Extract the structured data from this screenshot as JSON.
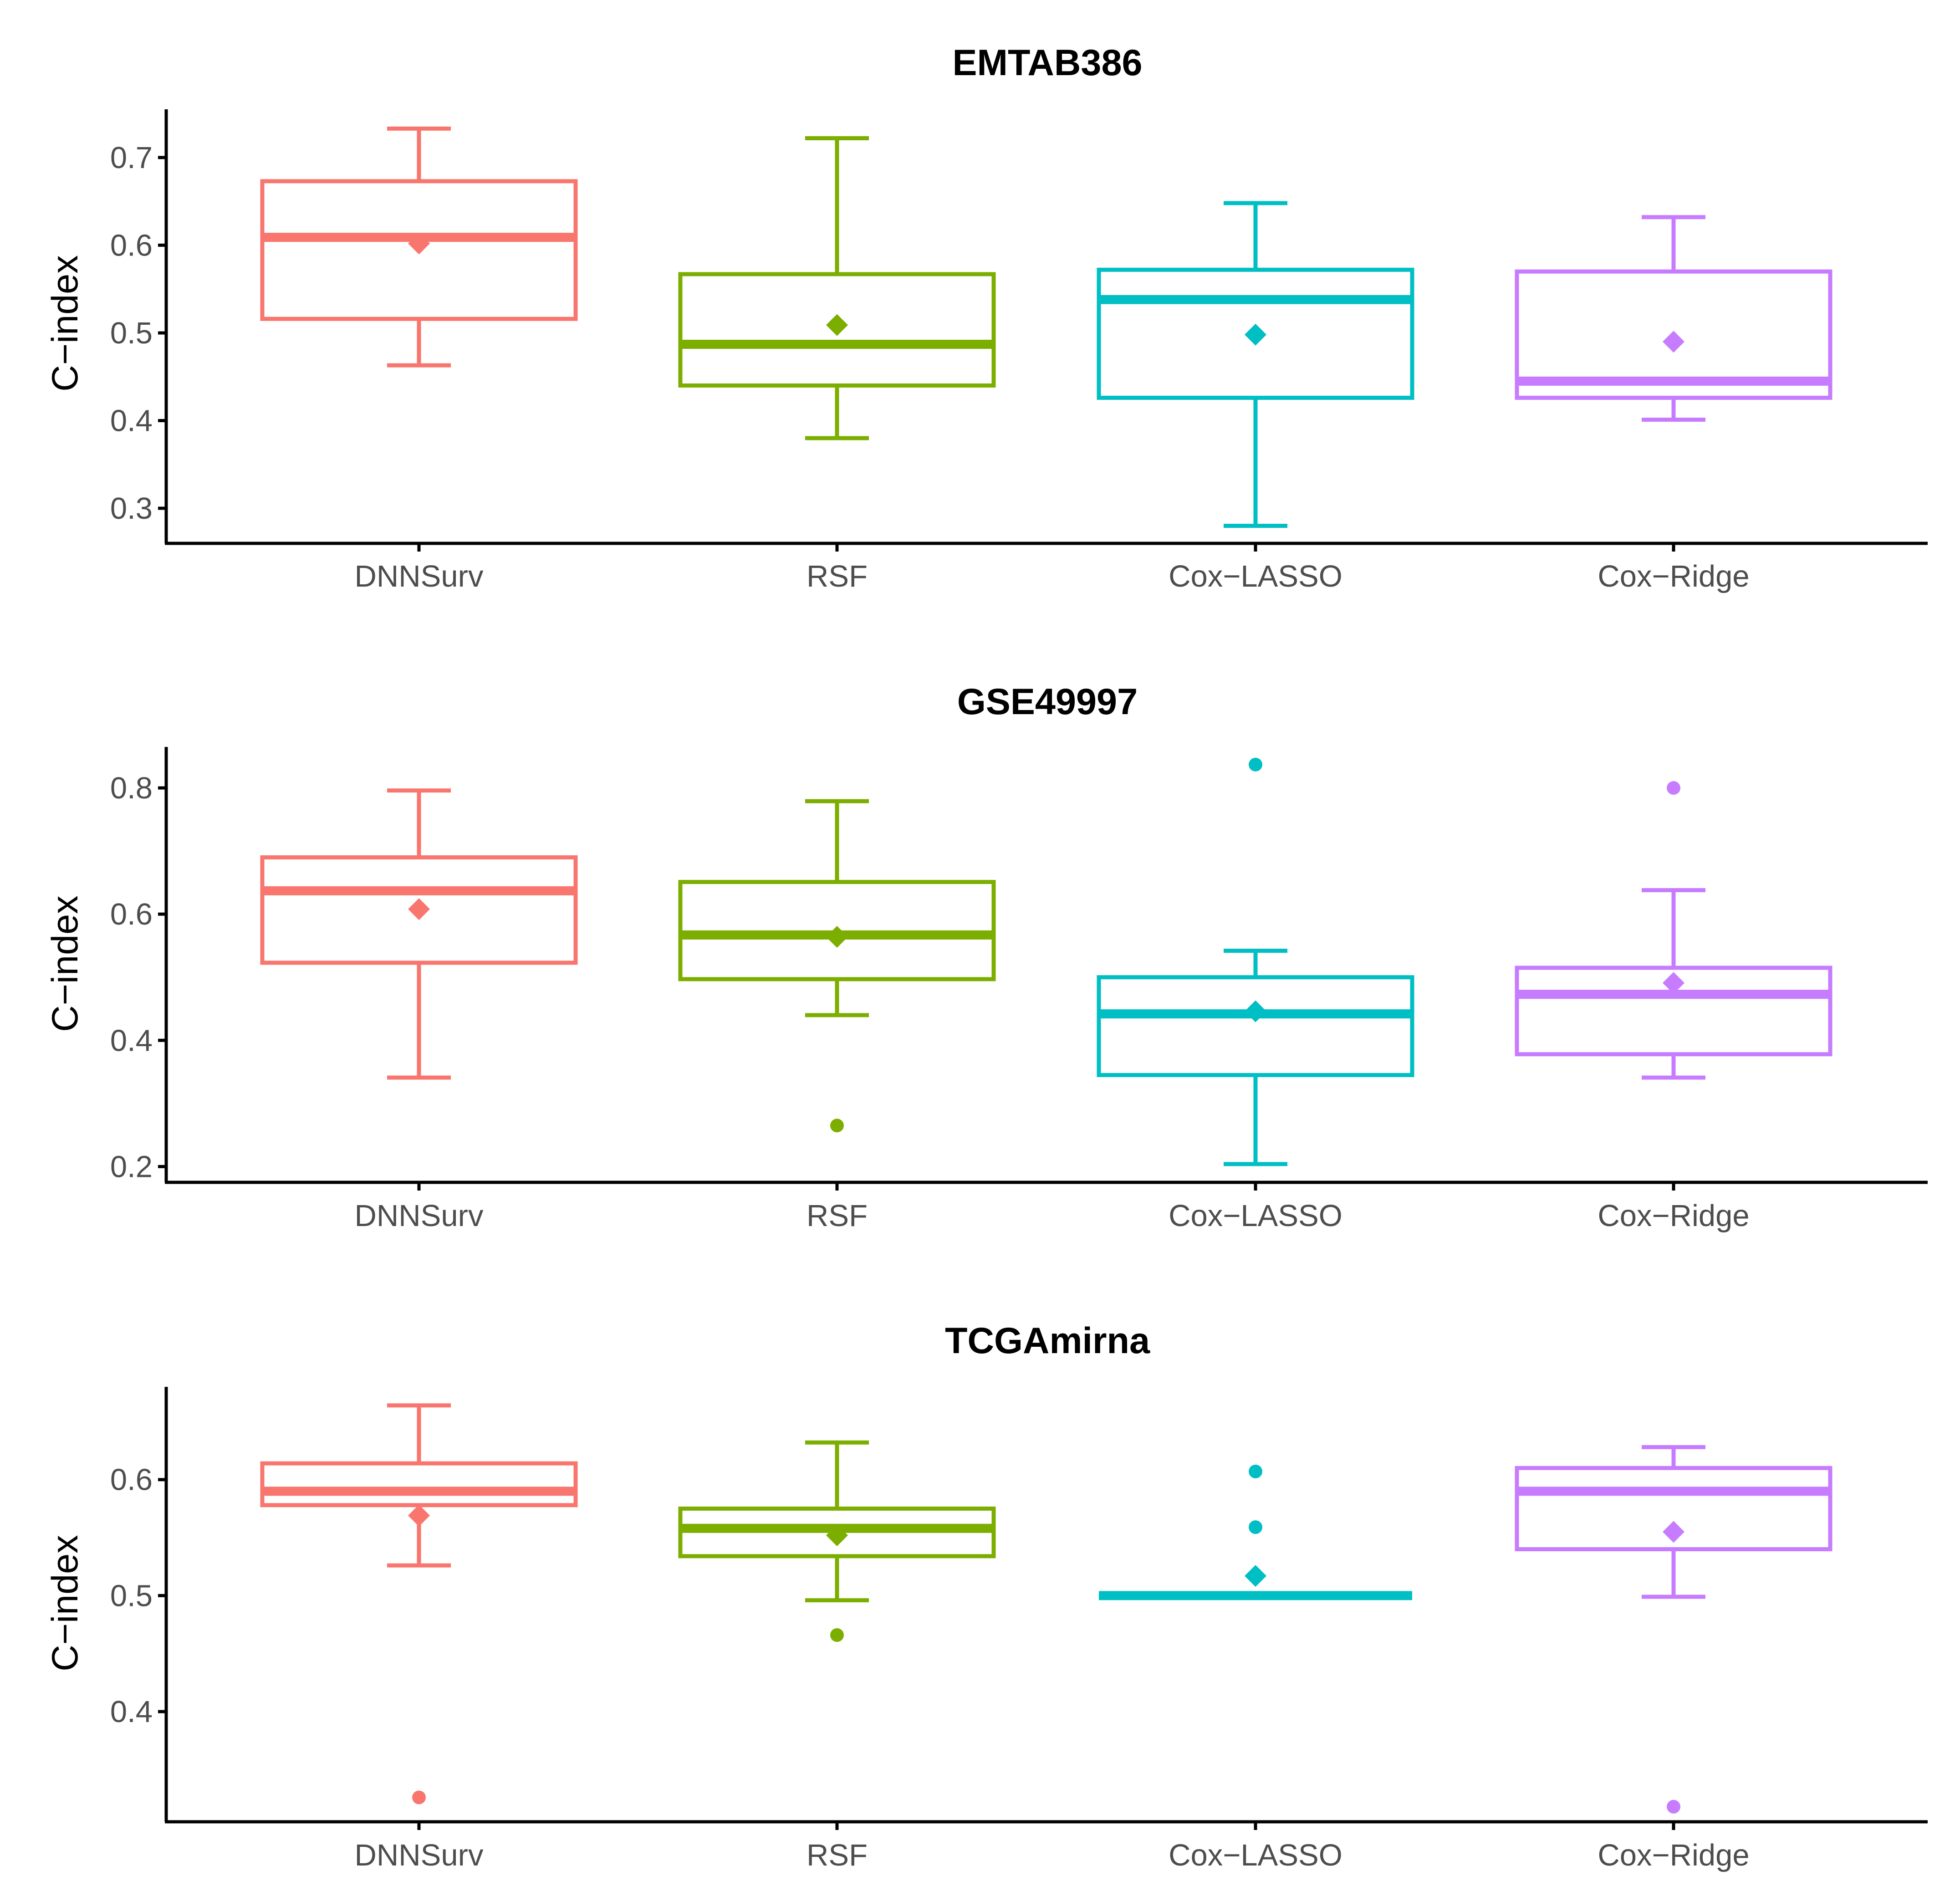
{
  "colors": {
    "DNNSurv": "#F8766D",
    "RSF": "#7CAE00",
    "Cox-LASSO": "#00BFC4",
    "Cox-Ridge": "#C77CFF",
    "axis": "#000000",
    "tick_label": "#4d4d4d"
  },
  "chart_data": [
    {
      "type": "boxplot",
      "title": "EMTAB386",
      "xlabel": "",
      "ylabel": "C−index",
      "categories": [
        "DNNSurv",
        "RSF",
        "Cox−LASSO",
        "Cox−Ridge"
      ],
      "yticks": [
        0.3,
        0.4,
        0.5,
        0.6,
        0.7
      ],
      "ylim": [
        0.26,
        0.755
      ],
      "boxes": [
        {
          "name": "DNNSurv",
          "color": "#F8766D",
          "whisker_low": 0.463,
          "q1": 0.516,
          "median": 0.609,
          "q3": 0.673,
          "whisker_high": 0.733,
          "mean": 0.602,
          "outliers": []
        },
        {
          "name": "RSF",
          "color": "#7CAE00",
          "whisker_low": 0.38,
          "q1": 0.44,
          "median": 0.487,
          "q3": 0.567,
          "whisker_high": 0.722,
          "mean": 0.509,
          "outliers": []
        },
        {
          "name": "Cox-LASSO",
          "color": "#00BFC4",
          "whisker_low": 0.28,
          "q1": 0.426,
          "median": 0.538,
          "q3": 0.572,
          "whisker_high": 0.648,
          "mean": 0.498,
          "outliers": []
        },
        {
          "name": "Cox-Ridge",
          "color": "#C77CFF",
          "whisker_low": 0.401,
          "q1": 0.426,
          "median": 0.445,
          "q3": 0.57,
          "whisker_high": 0.632,
          "mean": 0.49,
          "outliers": []
        }
      ]
    },
    {
      "type": "boxplot",
      "title": "GSE49997",
      "xlabel": "",
      "ylabel": "C−index",
      "categories": [
        "DNNSurv",
        "RSF",
        "Cox−LASSO",
        "Cox−Ridge"
      ],
      "yticks": [
        0.2,
        0.4,
        0.6,
        0.8
      ],
      "ylim": [
        0.175,
        0.865
      ],
      "boxes": [
        {
          "name": "DNNSurv",
          "color": "#F8766D",
          "whisker_low": 0.341,
          "q1": 0.523,
          "median": 0.637,
          "q3": 0.69,
          "whisker_high": 0.796,
          "mean": 0.608,
          "outliers": []
        },
        {
          "name": "RSF",
          "color": "#7CAE00",
          "whisker_low": 0.44,
          "q1": 0.497,
          "median": 0.567,
          "q3": 0.651,
          "whisker_high": 0.779,
          "mean": 0.564,
          "outliers": [
            0.265
          ]
        },
        {
          "name": "Cox-LASSO",
          "color": "#00BFC4",
          "whisker_low": 0.204,
          "q1": 0.345,
          "median": 0.442,
          "q3": 0.5,
          "whisker_high": 0.542,
          "mean": 0.446,
          "outliers": [
            0.837
          ]
        },
        {
          "name": "Cox-Ridge",
          "color": "#C77CFF",
          "whisker_low": 0.341,
          "q1": 0.378,
          "median": 0.473,
          "q3": 0.515,
          "whisker_high": 0.638,
          "mean": 0.491,
          "outliers": [
            0.8
          ]
        }
      ]
    },
    {
      "type": "boxplot",
      "title": "TCGAmirna",
      "xlabel": "",
      "ylabel": "C−index",
      "categories": [
        "DNNSurv",
        "RSF",
        "Cox−LASSO",
        "Cox−Ridge"
      ],
      "yticks": [
        0.4,
        0.5,
        0.6
      ],
      "ylim": [
        0.305,
        0.68
      ],
      "boxes": [
        {
          "name": "DNNSurv",
          "color": "#F8766D",
          "whisker_low": 0.526,
          "q1": 0.578,
          "median": 0.59,
          "q3": 0.614,
          "whisker_high": 0.664,
          "mean": 0.569,
          "outliers": [
            0.326
          ]
        },
        {
          "name": "RSF",
          "color": "#7CAE00",
          "whisker_low": 0.496,
          "q1": 0.534,
          "median": 0.558,
          "q3": 0.575,
          "whisker_high": 0.632,
          "mean": 0.552,
          "outliers": [
            0.466
          ]
        },
        {
          "name": "Cox-LASSO",
          "color": "#00BFC4",
          "whisker_low": 0.5,
          "q1": 0.5,
          "median": 0.5,
          "q3": 0.5,
          "whisker_high": 0.5,
          "mean": 0.517,
          "outliers": [
            0.607,
            0.559
          ]
        },
        {
          "name": "Cox-Ridge",
          "color": "#C77CFF",
          "whisker_low": 0.499,
          "q1": 0.54,
          "median": 0.59,
          "q3": 0.61,
          "whisker_high": 0.628,
          "mean": 0.555,
          "outliers": [
            0.318
          ]
        }
      ]
    }
  ]
}
